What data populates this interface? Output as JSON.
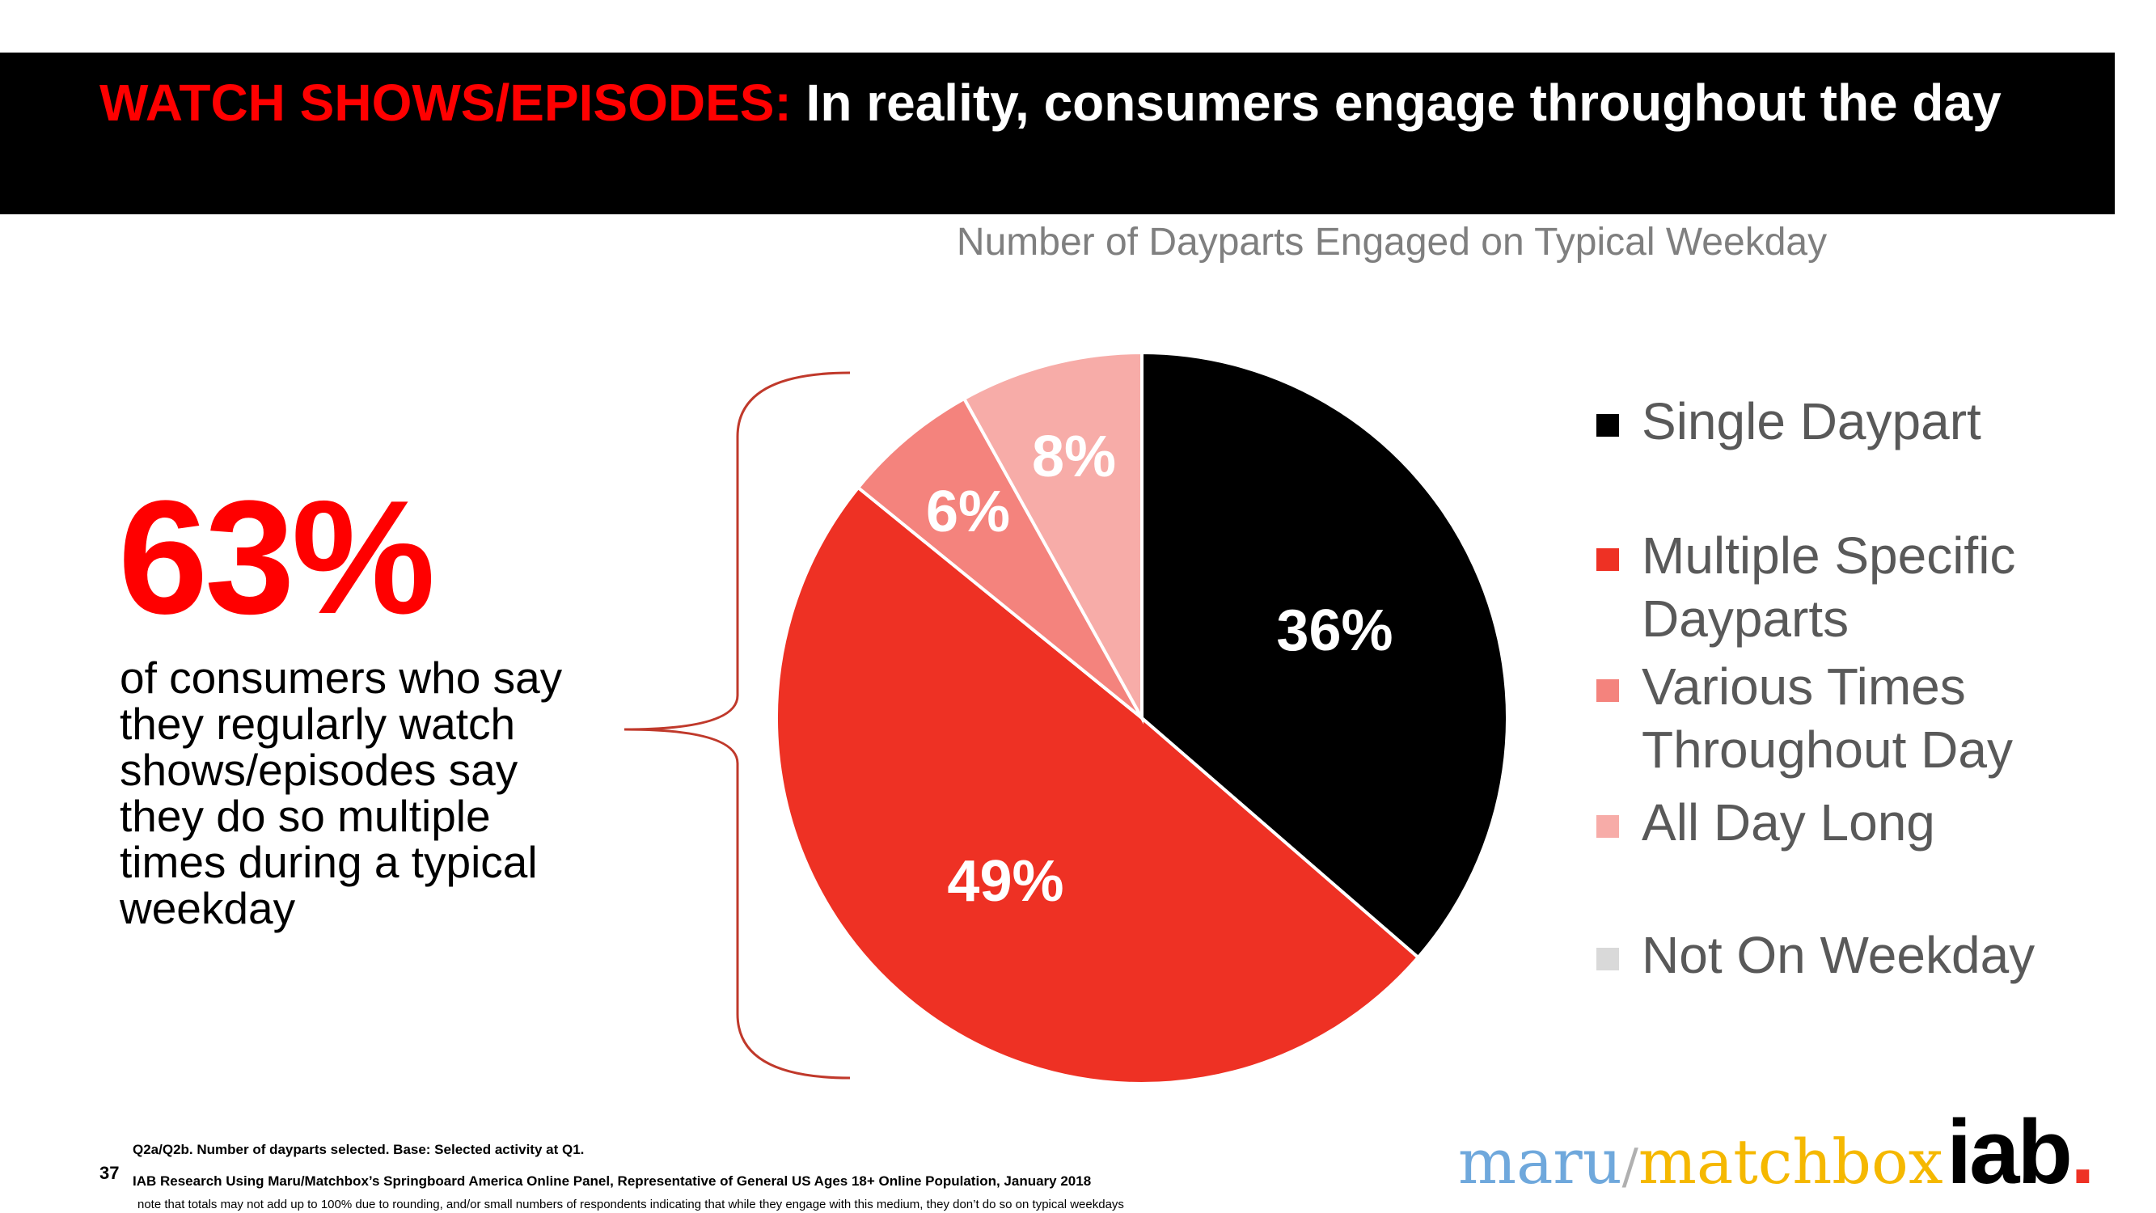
{
  "header": {
    "title_highlight": "WATCH SHOWS/EPISODES:",
    "title_rest": " In reality, consumers engage throughout the day"
  },
  "callout": {
    "stat": "63%",
    "description": "of consumers who say they regularly watch shows/episodes say they do so multiple times during a typical weekday"
  },
  "chart_data": {
    "type": "pie",
    "title": "Number of Dayparts Engaged on Typical Weekday",
    "start_angle_deg": 0,
    "direction": "clockwise",
    "slices": [
      {
        "name": "Single Daypart",
        "value": 36,
        "label": "36%",
        "color": "#000000"
      },
      {
        "name": "Multiple Specific Dayparts",
        "value": 49,
        "label": "49%",
        "color": "#ee3124"
      },
      {
        "name": "Various Times Throughout Day",
        "value": 6,
        "label": "6%",
        "color": "#f4837d"
      },
      {
        "name": "All Day Long",
        "value": 8,
        "label": "8%",
        "color": "#f7aca8"
      },
      {
        "name": "Not On Weekday",
        "value": 0,
        "label": "",
        "color": "#d9d9d9"
      }
    ],
    "legend_position": "right"
  },
  "footer": {
    "page_number": "37",
    "line1": "Q2a/Q2b. Number of dayparts selected. Base: Selected activity at Q1.",
    "line2": "IAB Research Using Maru/Matchbox’s Springboard America Online Panel, Representative of General US Ages 18+ Online Population, January 2018",
    "line3": "note that totals may not add up to 100% due to rounding, and/or small numbers of respondents indicating that while they engage with this medium, they don’t do so on typical weekdays"
  },
  "logo": {
    "maru": "maru",
    "slash": "/",
    "matchbox": "matchbox",
    "iab": "iab",
    "dot": "."
  }
}
